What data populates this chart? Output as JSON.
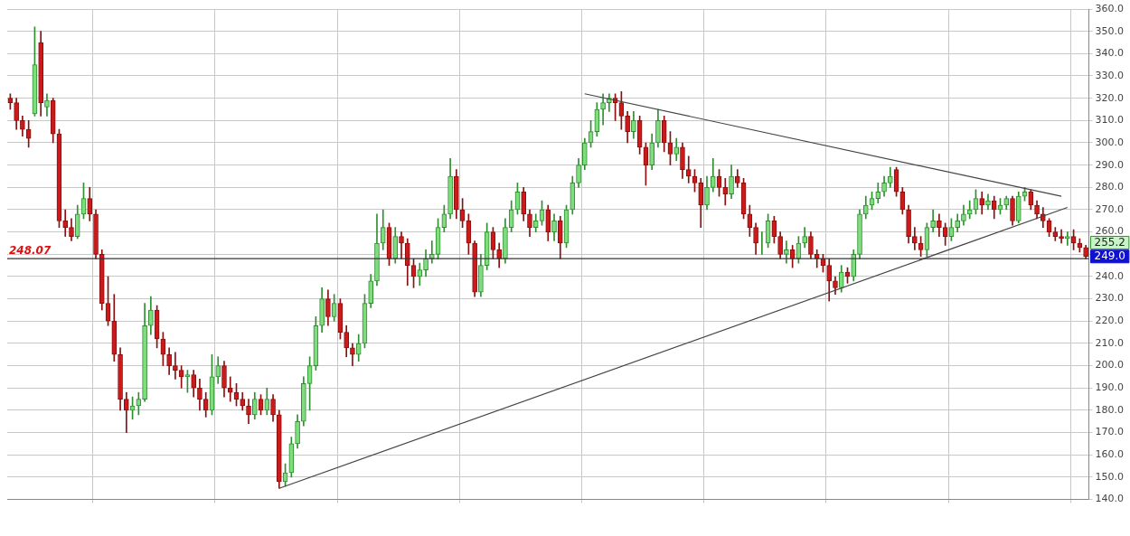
{
  "chart_data": {
    "type": "candlestick",
    "categories": [
      null,
      null,
      null,
      null,
      null,
      null,
      null,
      null,
      null,
      null,
      null,
      null,
      null,
      null,
      null,
      null,
      null,
      null,
      null,
      null,
      null,
      null,
      null,
      null,
      null,
      null,
      null,
      null,
      null,
      null,
      null,
      null,
      null,
      null,
      null,
      null,
      null,
      null,
      null,
      null,
      null,
      null,
      null,
      null,
      null,
      null,
      null,
      null,
      null,
      null,
      null,
      null,
      null,
      null,
      null,
      null,
      null,
      null,
      null,
      null,
      null,
      null,
      null,
      null,
      null,
      null,
      null,
      null,
      null,
      null,
      null,
      null,
      null,
      null,
      null,
      null,
      null,
      null,
      null,
      null,
      null,
      null,
      null,
      null,
      null,
      null,
      null,
      null,
      null,
      null,
      null,
      null,
      null,
      null,
      null,
      null,
      null,
      null,
      null,
      null,
      null,
      null,
      null,
      null,
      null,
      null,
      null,
      null,
      null,
      null,
      null,
      null,
      null,
      null,
      null,
      null,
      null,
      null,
      null,
      null,
      null,
      null,
      null,
      null,
      null,
      null,
      null,
      null,
      null,
      null,
      null,
      null,
      null,
      null,
      null,
      null,
      null,
      null,
      null,
      null,
      null,
      null,
      null,
      null,
      null,
      null,
      null,
      null,
      null,
      null,
      null,
      null,
      null,
      null,
      null,
      null,
      null,
      null,
      null,
      null,
      null,
      null,
      null,
      null,
      null,
      null,
      null,
      null,
      null,
      null,
      null,
      null,
      null,
      null,
      null,
      null,
      null
    ],
    "ohlc": [
      [
        320,
        322,
        315,
        318
      ],
      [
        318,
        320,
        306,
        310
      ],
      [
        310,
        312,
        303,
        306
      ],
      [
        306,
        310,
        298,
        302
      ],
      [
        313,
        352,
        312,
        335
      ],
      [
        345,
        350,
        312,
        318
      ],
      [
        316,
        322,
        312,
        319
      ],
      [
        319,
        320,
        300,
        304
      ],
      [
        304,
        306,
        262,
        265
      ],
      [
        265,
        270,
        258,
        262
      ],
      [
        262,
        266,
        256,
        258
      ],
      [
        258,
        272,
        257,
        268
      ],
      [
        268,
        282,
        266,
        275
      ],
      [
        275,
        280,
        265,
        268
      ],
      [
        268,
        270,
        248,
        250
      ],
      [
        250,
        252,
        225,
        228
      ],
      [
        228,
        240,
        218,
        220
      ],
      [
        220,
        232,
        202,
        205
      ],
      [
        205,
        208,
        180,
        185
      ],
      [
        185,
        188,
        170,
        180
      ],
      [
        180,
        186,
        176,
        182
      ],
      [
        182,
        188,
        178,
        185
      ],
      [
        185,
        228,
        184,
        218
      ],
      [
        218,
        231,
        214,
        225
      ],
      [
        225,
        227,
        208,
        212
      ],
      [
        212,
        215,
        200,
        205
      ],
      [
        205,
        208,
        196,
        200
      ],
      [
        200,
        206,
        194,
        198
      ],
      [
        198,
        200,
        190,
        195
      ],
      [
        195,
        198,
        188,
        196
      ],
      [
        196,
        198,
        186,
        190
      ],
      [
        190,
        194,
        180,
        185
      ],
      [
        185,
        188,
        177,
        180
      ],
      [
        180,
        205,
        178,
        195
      ],
      [
        195,
        204,
        192,
        200
      ],
      [
        200,
        202,
        186,
        190
      ],
      [
        190,
        195,
        184,
        188
      ],
      [
        188,
        192,
        182,
        185
      ],
      [
        185,
        188,
        180,
        182
      ],
      [
        182,
        185,
        174,
        178
      ],
      [
        178,
        188,
        176,
        185
      ],
      [
        185,
        187,
        178,
        180
      ],
      [
        180,
        190,
        178,
        185
      ],
      [
        185,
        187,
        175,
        178
      ],
      [
        178,
        180,
        145,
        148
      ],
      [
        148,
        156,
        146,
        152
      ],
      [
        152,
        168,
        150,
        165
      ],
      [
        165,
        178,
        163,
        175
      ],
      [
        175,
        195,
        173,
        192
      ],
      [
        192,
        204,
        180,
        200
      ],
      [
        200,
        222,
        198,
        218
      ],
      [
        218,
        235,
        215,
        230
      ],
      [
        230,
        234,
        218,
        222
      ],
      [
        222,
        232,
        220,
        228
      ],
      [
        228,
        230,
        212,
        215
      ],
      [
        215,
        218,
        204,
        208
      ],
      [
        208,
        210,
        200,
        205
      ],
      [
        205,
        214,
        202,
        210
      ],
      [
        210,
        232,
        208,
        228
      ],
      [
        228,
        241,
        226,
        238
      ],
      [
        238,
        268,
        236,
        255
      ],
      [
        255,
        270,
        252,
        262
      ],
      [
        262,
        264,
        245,
        248
      ],
      [
        248,
        262,
        246,
        258
      ],
      [
        258,
        260,
        248,
        255
      ],
      [
        255,
        257,
        236,
        245
      ],
      [
        245,
        248,
        235,
        240
      ],
      [
        240,
        246,
        236,
        243
      ],
      [
        243,
        252,
        240,
        248
      ],
      [
        248,
        256,
        246,
        250
      ],
      [
        250,
        266,
        248,
        262
      ],
      [
        262,
        272,
        260,
        268
      ],
      [
        268,
        293,
        266,
        285
      ],
      [
        285,
        288,
        266,
        270
      ],
      [
        270,
        275,
        262,
        265
      ],
      [
        265,
        268,
        250,
        255
      ],
      [
        255,
        256,
        231,
        233
      ],
      [
        233,
        250,
        231,
        245
      ],
      [
        245,
        264,
        243,
        260
      ],
      [
        260,
        262,
        248,
        252
      ],
      [
        252,
        255,
        244,
        248
      ],
      [
        248,
        266,
        246,
        262
      ],
      [
        262,
        274,
        260,
        270
      ],
      [
        270,
        282,
        268,
        278
      ],
      [
        278,
        280,
        265,
        268
      ],
      [
        268,
        270,
        258,
        262
      ],
      [
        262,
        268,
        260,
        265
      ],
      [
        265,
        274,
        263,
        270
      ],
      [
        270,
        272,
        256,
        260
      ],
      [
        260,
        268,
        256,
        265
      ],
      [
        265,
        267,
        248,
        255
      ],
      [
        255,
        272,
        253,
        270
      ],
      [
        270,
        285,
        268,
        282
      ],
      [
        282,
        293,
        280,
        290
      ],
      [
        290,
        302,
        288,
        300
      ],
      [
        300,
        310,
        298,
        305
      ],
      [
        305,
        318,
        303,
        315
      ],
      [
        315,
        322,
        308,
        318
      ],
      [
        318,
        322,
        314,
        320
      ],
      [
        320,
        322,
        310,
        318
      ],
      [
        318,
        323,
        306,
        312
      ],
      [
        312,
        314,
        300,
        305
      ],
      [
        305,
        314,
        302,
        310
      ],
      [
        310,
        312,
        295,
        298
      ],
      [
        298,
        300,
        281,
        290
      ],
      [
        290,
        304,
        288,
        300
      ],
      [
        300,
        315,
        298,
        310
      ],
      [
        310,
        312,
        296,
        300
      ],
      [
        300,
        305,
        290,
        295
      ],
      [
        295,
        302,
        292,
        298
      ],
      [
        298,
        300,
        284,
        288
      ],
      [
        288,
        294,
        282,
        285
      ],
      [
        285,
        288,
        278,
        282
      ],
      [
        282,
        284,
        262,
        272
      ],
      [
        272,
        285,
        270,
        280
      ],
      [
        280,
        293,
        278,
        285
      ],
      [
        285,
        288,
        276,
        280
      ],
      [
        280,
        284,
        272,
        277
      ],
      [
        277,
        290,
        275,
        285
      ],
      [
        285,
        288,
        280,
        282
      ],
      [
        282,
        284,
        266,
        268
      ],
      [
        268,
        272,
        258,
        262
      ],
      [
        262,
        264,
        250,
        255
      ],
      [
        255,
        260,
        250,
        255
      ],
      [
        255,
        268,
        253,
        265
      ],
      [
        265,
        267,
        255,
        258
      ],
      [
        258,
        260,
        248,
        250
      ],
      [
        250,
        256,
        246,
        252
      ],
      [
        252,
        254,
        244,
        248
      ],
      [
        248,
        258,
        246,
        255
      ],
      [
        255,
        262,
        253,
        258
      ],
      [
        258,
        260,
        248,
        250
      ],
      [
        250,
        252,
        244,
        248
      ],
      [
        248,
        250,
        242,
        245
      ],
      [
        245,
        248,
        229,
        238
      ],
      [
        238,
        240,
        232,
        235
      ],
      [
        235,
        245,
        233,
        242
      ],
      [
        242,
        244,
        237,
        240
      ],
      [
        240,
        252,
        238,
        250
      ],
      [
        250,
        270,
        248,
        268
      ],
      [
        268,
        276,
        266,
        272
      ],
      [
        272,
        278,
        270,
        275
      ],
      [
        275,
        282,
        273,
        278
      ],
      [
        278,
        285,
        276,
        282
      ],
      [
        282,
        289,
        280,
        285
      ],
      [
        288,
        289,
        276,
        278
      ],
      [
        278,
        280,
        268,
        270
      ],
      [
        270,
        272,
        255,
        258
      ],
      [
        258,
        262,
        252,
        255
      ],
      [
        255,
        258,
        249,
        252
      ],
      [
        252,
        264,
        249,
        262
      ],
      [
        262,
        270,
        260,
        265
      ],
      [
        265,
        268,
        258,
        262
      ],
      [
        262,
        264,
        254,
        258
      ],
      [
        258,
        266,
        256,
        262
      ],
      [
        262,
        268,
        260,
        265
      ],
      [
        265,
        272,
        263,
        268
      ],
      [
        268,
        274,
        266,
        270
      ],
      [
        270,
        279,
        268,
        275
      ],
      [
        275,
        278,
        268,
        272
      ],
      [
        272,
        277,
        270,
        274
      ],
      [
        274,
        276,
        266,
        270
      ],
      [
        270,
        275,
        268,
        272
      ],
      [
        272,
        276,
        270,
        275
      ],
      [
        275,
        276,
        263,
        265
      ],
      [
        265,
        278,
        264,
        276
      ],
      [
        276,
        280,
        274,
        278
      ],
      [
        278,
        279,
        270,
        272
      ],
      [
        272,
        274,
        266,
        268
      ],
      [
        268,
        271,
        262,
        265
      ],
      [
        265,
        266,
        258,
        260
      ],
      [
        260,
        262,
        256,
        258
      ],
      [
        258,
        261,
        255,
        257
      ],
      [
        257,
        260,
        254,
        258
      ],
      [
        258,
        261,
        252,
        255
      ],
      [
        255,
        257,
        251,
        253
      ],
      [
        253,
        254,
        248,
        249
      ]
    ],
    "series": [
      {
        "type": "line",
        "color": "#444444",
        "values": [
          null,
          null,
          null,
          null,
          null,
          null,
          null,
          null,
          null,
          null,
          null,
          null,
          null,
          null,
          null,
          null,
          null,
          null,
          null,
          null,
          null,
          null,
          null,
          null,
          null,
          null,
          null,
          null,
          null,
          null,
          null,
          null,
          null,
          null,
          null,
          null,
          null,
          null,
          null,
          null,
          null,
          null,
          null,
          null,
          145,
          null,
          null,
          null,
          null,
          null,
          null,
          null,
          null,
          null,
          null,
          null,
          null,
          null,
          null,
          null,
          null,
          null,
          null,
          null,
          null,
          null,
          null,
          null,
          null,
          null,
          null,
          null,
          null,
          null,
          null,
          null,
          null,
          null,
          null,
          null,
          null,
          null,
          null,
          null,
          null,
          null,
          null,
          null,
          null,
          null,
          null,
          null,
          null,
          null,
          null,
          null,
          null,
          null,
          null,
          null,
          null,
          null,
          null,
          null,
          null,
          null,
          null,
          null,
          null,
          null,
          null,
          null,
          null,
          null,
          null,
          null,
          null,
          null,
          null,
          null,
          null,
          null,
          null,
          null,
          null,
          null,
          null,
          null,
          null,
          null,
          null,
          null,
          null,
          null,
          null,
          null,
          null,
          null,
          null,
          null,
          null,
          null,
          null,
          null,
          null,
          null,
          null,
          null,
          null,
          null,
          null,
          null,
          null,
          null,
          null,
          null,
          null,
          null,
          null,
          null,
          null,
          null,
          null,
          null,
          null,
          null,
          null,
          null,
          null,
          null,
          null,
          null,
          null,
          271,
          null,
          null,
          null
        ]
      },
      {
        "type": "line",
        "color": "#444444",
        "values": [
          null,
          null,
          null,
          null,
          null,
          null,
          null,
          null,
          null,
          null,
          null,
          null,
          null,
          null,
          null,
          null,
          null,
          null,
          null,
          null,
          null,
          null,
          null,
          null,
          null,
          null,
          null,
          null,
          null,
          null,
          null,
          null,
          null,
          null,
          null,
          null,
          null,
          null,
          null,
          null,
          null,
          null,
          null,
          null,
          null,
          null,
          null,
          null,
          null,
          null,
          null,
          null,
          null,
          null,
          null,
          null,
          null,
          null,
          null,
          null,
          null,
          null,
          null,
          null,
          null,
          null,
          null,
          null,
          null,
          null,
          null,
          null,
          null,
          null,
          null,
          null,
          null,
          null,
          null,
          null,
          null,
          null,
          null,
          null,
          null,
          null,
          null,
          null,
          null,
          null,
          null,
          null,
          null,
          null,
          322,
          null,
          null,
          null,
          null,
          null,
          null,
          null,
          null,
          null,
          null,
          null,
          null,
          null,
          null,
          null,
          null,
          null,
          null,
          null,
          null,
          null,
          null,
          null,
          null,
          null,
          null,
          null,
          null,
          null,
          null,
          null,
          null,
          null,
          null,
          null,
          null,
          null,
          null,
          null,
          null,
          null,
          null,
          null,
          null,
          null,
          null,
          null,
          null,
          null,
          null,
          null,
          null,
          null,
          null,
          null,
          null,
          null,
          null,
          null,
          null,
          null,
          null,
          null,
          null,
          null,
          null,
          null,
          null,
          null,
          null,
          null,
          null,
          null,
          null,
          null,
          null,
          null,
          276,
          null,
          null,
          null,
          null
        ]
      }
    ],
    "ylim": [
      140,
      360
    ],
    "yticks": [
      {
        "value": 140,
        "label": "140.0"
      },
      {
        "value": 150,
        "label": "150.0"
      },
      {
        "value": 160,
        "label": "160.0"
      },
      {
        "value": 170,
        "label": "170.0"
      },
      {
        "value": 180,
        "label": "180.0"
      },
      {
        "value": 190,
        "label": "190.0"
      },
      {
        "value": 200,
        "label": "200.0"
      },
      {
        "value": 210,
        "label": "210.0"
      },
      {
        "value": 220,
        "label": "220.0"
      },
      {
        "value": 230,
        "label": "230.0"
      },
      {
        "value": 240,
        "label": "240.0"
      },
      {
        "value": 250,
        "label": null
      },
      {
        "value": 260,
        "label": "260.0"
      },
      {
        "value": 270,
        "label": "270.0"
      },
      {
        "value": 280,
        "label": "280.0"
      },
      {
        "value": 290,
        "label": "290.0"
      },
      {
        "value": 300,
        "label": "300.0"
      },
      {
        "value": 310,
        "label": "310.0"
      },
      {
        "value": 320,
        "label": "320.0"
      },
      {
        "value": 330,
        "label": "330.0"
      },
      {
        "value": 340,
        "label": "340.0"
      },
      {
        "value": 350,
        "label": "350.0"
      },
      {
        "value": 360,
        "label": "360.0"
      }
    ],
    "grid": true,
    "ref_lines": [
      {
        "axis": "y",
        "value": 248.07,
        "label": "248.07",
        "color": "#333333"
      }
    ],
    "annotations": [
      {
        "text": "255.2",
        "y": 255.2
      },
      {
        "text": "249.0",
        "y": 249
      }
    ]
  }
}
